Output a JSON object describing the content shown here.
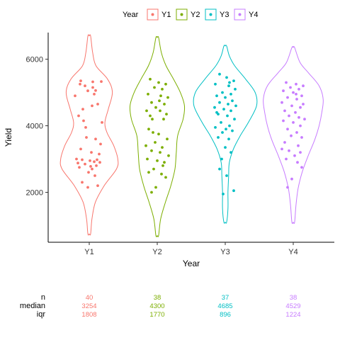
{
  "chart_data": {
    "type": "violin",
    "xlabel": "Year",
    "ylabel": "Yield",
    "categories": [
      "Y1",
      "Y2",
      "Y3",
      "Y4"
    ],
    "ylim": [
      500,
      6800
    ],
    "yticks": [
      2000,
      4000,
      6000
    ],
    "legend": {
      "title": "Year",
      "position": "top",
      "entries": [
        "Y1",
        "Y2",
        "Y3",
        "Y4"
      ]
    },
    "colors": {
      "Y1": "#F8766D",
      "Y2": "#7CAE00",
      "Y3": "#00BFC4",
      "Y4": "#C77CFF"
    },
    "grid": false,
    "series": [
      {
        "name": "Y1",
        "range": [
          750,
          6700
        ],
        "density": [
          [
            750,
            0.02
          ],
          [
            1200,
            0.04
          ],
          [
            1700,
            0.09
          ],
          [
            2200,
            0.22
          ],
          [
            2700,
            0.4
          ],
          [
            3000,
            0.42
          ],
          [
            3400,
            0.36
          ],
          [
            3800,
            0.26
          ],
          [
            4100,
            0.23
          ],
          [
            4500,
            0.28
          ],
          [
            5000,
            0.34
          ],
          [
            5400,
            0.27
          ],
          [
            5800,
            0.1
          ],
          [
            6200,
            0.05
          ],
          [
            6700,
            0.02
          ]
        ],
        "points": [
          [
            -0.12,
            5350
          ],
          [
            0.17,
            5330
          ],
          [
            -0.06,
            5200
          ],
          [
            0.05,
            5150
          ],
          [
            -0.02,
            5050
          ],
          [
            0.09,
            5060
          ],
          [
            -0.2,
            4900
          ],
          [
            0.12,
            4650
          ],
          [
            0.04,
            4600
          ],
          [
            -0.15,
            4300
          ],
          [
            -0.08,
            4150
          ],
          [
            0.18,
            4100
          ],
          [
            -0.04,
            3650
          ],
          [
            0.09,
            3600
          ],
          [
            -0.12,
            3300
          ],
          [
            0.03,
            3200
          ],
          [
            0.14,
            3150
          ],
          [
            -0.18,
            3000
          ],
          [
            -0.1,
            2980
          ],
          [
            0.01,
            2950
          ],
          [
            0.07,
            2920
          ],
          [
            0.15,
            2900
          ],
          [
            -0.06,
            2850
          ],
          [
            0.1,
            2800
          ],
          [
            -0.14,
            2750
          ],
          [
            0.04,
            2700
          ],
          [
            -0.01,
            2600
          ],
          [
            0.08,
            2500
          ],
          [
            -0.1,
            2300
          ],
          [
            0.12,
            2200
          ],
          [
            -0.02,
            2150
          ],
          [
            0.05,
            5320
          ],
          [
            -0.09,
            4500
          ],
          [
            0.16,
            3450
          ],
          [
            -0.16,
            2880
          ],
          [
            0.02,
            2780
          ],
          [
            0.11,
            2980
          ],
          [
            -0.05,
            3950
          ],
          [
            0.07,
            4950
          ],
          [
            -0.13,
            5250
          ]
        ],
        "n": "40",
        "median": "3254",
        "iqr": "1808"
      },
      {
        "name": "Y2",
        "range": [
          700,
          6650
        ],
        "density": [
          [
            700,
            0.02
          ],
          [
            1200,
            0.05
          ],
          [
            1700,
            0.12
          ],
          [
            2200,
            0.2
          ],
          [
            2700,
            0.26
          ],
          [
            3200,
            0.28
          ],
          [
            3700,
            0.3
          ],
          [
            4200,
            0.38
          ],
          [
            4600,
            0.4
          ],
          [
            5000,
            0.34
          ],
          [
            5400,
            0.24
          ],
          [
            5800,
            0.13
          ],
          [
            6200,
            0.06
          ],
          [
            6650,
            0.02
          ]
        ],
        "points": [
          [
            -0.1,
            5400
          ],
          [
            0.02,
            5300
          ],
          [
            0.12,
            5250
          ],
          [
            -0.04,
            5150
          ],
          [
            0.07,
            5100
          ],
          [
            -0.13,
            4950
          ],
          [
            0.05,
            4900
          ],
          [
            0.15,
            4850
          ],
          [
            -0.08,
            4700
          ],
          [
            0.1,
            4650
          ],
          [
            -0.02,
            4550
          ],
          [
            -0.15,
            4450
          ],
          [
            0.04,
            4450
          ],
          [
            0.13,
            4350
          ],
          [
            -0.07,
            4200
          ],
          [
            0.09,
            4200
          ],
          [
            -0.12,
            3900
          ],
          [
            0.02,
            3750
          ],
          [
            0.14,
            3600
          ],
          [
            -0.03,
            3500
          ],
          [
            -0.16,
            3400
          ],
          [
            0.07,
            3350
          ],
          [
            -0.08,
            3250
          ],
          [
            0.04,
            3200
          ],
          [
            0.16,
            3100
          ],
          [
            -0.14,
            3000
          ],
          [
            0.0,
            2950
          ],
          [
            0.1,
            2900
          ],
          [
            -0.05,
            2700
          ],
          [
            -0.12,
            2600
          ],
          [
            0.06,
            2550
          ],
          [
            0.12,
            2450
          ],
          [
            -0.02,
            2150
          ],
          [
            -0.08,
            2000
          ],
          [
            0.03,
            4750
          ],
          [
            -0.06,
            3800
          ],
          [
            0.08,
            2800
          ],
          [
            -0.1,
            4300
          ]
        ],
        "n": "38",
        "median": "4300",
        "iqr": "1770"
      },
      {
        "name": "Y3",
        "range": [
          1100,
          6400
        ],
        "density": [
          [
            1100,
            0.02
          ],
          [
            1500,
            0.04
          ],
          [
            2000,
            0.04
          ],
          [
            2500,
            0.05
          ],
          [
            2900,
            0.06
          ],
          [
            3300,
            0.12
          ],
          [
            3700,
            0.22
          ],
          [
            4100,
            0.34
          ],
          [
            4600,
            0.46
          ],
          [
            5000,
            0.44
          ],
          [
            5400,
            0.3
          ],
          [
            5800,
            0.14
          ],
          [
            6100,
            0.06
          ],
          [
            6400,
            0.02
          ]
        ],
        "points": [
          [
            -0.08,
            5550
          ],
          [
            0.02,
            5450
          ],
          [
            0.12,
            5350
          ],
          [
            -0.14,
            5250
          ],
          [
            0.05,
            5200
          ],
          [
            0.14,
            5100
          ],
          [
            -0.04,
            5000
          ],
          [
            0.08,
            4950
          ],
          [
            -0.12,
            4900
          ],
          [
            0.0,
            4850
          ],
          [
            0.1,
            4750
          ],
          [
            -0.08,
            4700
          ],
          [
            0.04,
            4650
          ],
          [
            0.15,
            4600
          ],
          [
            -0.15,
            4550
          ],
          [
            -0.02,
            4500
          ],
          [
            0.08,
            4450
          ],
          [
            -0.1,
            4350
          ],
          [
            0.03,
            4300
          ],
          [
            0.13,
            4200
          ],
          [
            -0.06,
            4100
          ],
          [
            0.06,
            4000
          ],
          [
            -0.14,
            3950
          ],
          [
            0.01,
            3900
          ],
          [
            0.1,
            3850
          ],
          [
            -0.04,
            3800
          ],
          [
            -0.1,
            3650
          ],
          [
            0.05,
            3600
          ],
          [
            0.0,
            3350
          ],
          [
            0.08,
            3200
          ],
          [
            -0.05,
            3000
          ],
          [
            -0.08,
            2700
          ],
          [
            0.02,
            2500
          ],
          [
            -0.03,
            1950
          ],
          [
            0.12,
            2050
          ],
          [
            0.06,
            5300
          ],
          [
            -0.12,
            4400
          ]
        ],
        "n": "37",
        "median": "4685",
        "iqr": "896"
      },
      {
        "name": "Y4",
        "range": [
          1100,
          6350
        ],
        "density": [
          [
            1100,
            0.02
          ],
          [
            1600,
            0.04
          ],
          [
            2100,
            0.07
          ],
          [
            2600,
            0.13
          ],
          [
            3100,
            0.22
          ],
          [
            3600,
            0.32
          ],
          [
            4000,
            0.38
          ],
          [
            4400,
            0.42
          ],
          [
            4800,
            0.44
          ],
          [
            5200,
            0.38
          ],
          [
            5600,
            0.22
          ],
          [
            5900,
            0.1
          ],
          [
            6350,
            0.02
          ]
        ],
        "points": [
          [
            -0.1,
            5300
          ],
          [
            0.04,
            5250
          ],
          [
            0.14,
            5200
          ],
          [
            -0.04,
            5150
          ],
          [
            0.08,
            5100
          ],
          [
            -0.14,
            5050
          ],
          [
            0.0,
            5000
          ],
          [
            0.12,
            4900
          ],
          [
            -0.08,
            4850
          ],
          [
            0.05,
            4800
          ],
          [
            -0.16,
            4700
          ],
          [
            0.14,
            4650
          ],
          [
            -0.02,
            4600
          ],
          [
            0.1,
            4550
          ],
          [
            -0.12,
            4450
          ],
          [
            0.03,
            4400
          ],
          [
            -0.06,
            4300
          ],
          [
            0.08,
            4250
          ],
          [
            0.16,
            4200
          ],
          [
            -0.14,
            4150
          ],
          [
            0.0,
            4100
          ],
          [
            0.1,
            4000
          ],
          [
            -0.08,
            3900
          ],
          [
            0.05,
            3800
          ],
          [
            -0.03,
            3700
          ],
          [
            0.12,
            3650
          ],
          [
            -0.12,
            3500
          ],
          [
            0.07,
            3400
          ],
          [
            -0.16,
            3300
          ],
          [
            -0.06,
            3250
          ],
          [
            0.1,
            3200
          ],
          [
            0.02,
            3100
          ],
          [
            -0.1,
            3000
          ],
          [
            0.06,
            2900
          ],
          [
            0.12,
            2750
          ],
          [
            -0.02,
            2400
          ],
          [
            -0.08,
            2150
          ],
          [
            0.04,
            4950
          ]
        ],
        "n": "38",
        "median": "4529",
        "iqr": "1224"
      }
    ],
    "stats_labels": {
      "n": "n",
      "median": "median",
      "iqr": "iqr"
    }
  }
}
